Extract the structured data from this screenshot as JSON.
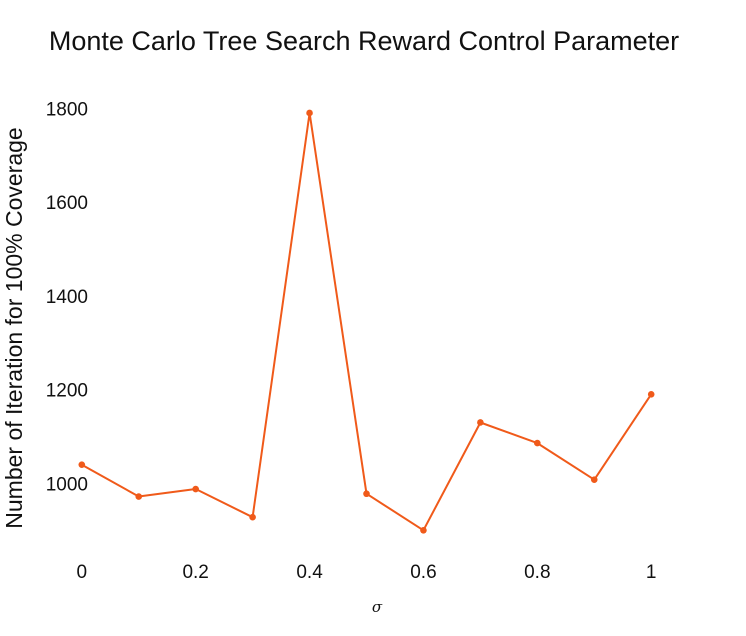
{
  "chart_data": {
    "type": "line",
    "title": "Monte Carlo Tree Search Reward Control Parameter",
    "xlabel": "σ",
    "ylabel": "Number of Iteration for 100% Coverage",
    "x": [
      0,
      0.1,
      0.2,
      0.3,
      0.4,
      0.5,
      0.6,
      0.7,
      0.8,
      0.9,
      1
    ],
    "series": [
      {
        "values": [
          1040,
          972,
          988,
          928,
          1790,
          978,
          900,
          1130,
          1086,
          1008,
          1190
        ],
        "color": "#f05a1a"
      }
    ],
    "xticks": [
      0,
      0.2,
      0.4,
      0.6,
      0.8,
      1
    ],
    "xtick_labels": [
      "0",
      "0.2",
      "0.4",
      "0.6",
      "0.8",
      "1"
    ],
    "yticks": [
      1000,
      1200,
      1400,
      1600,
      1800
    ],
    "ytick_labels": [
      "1000",
      "1200",
      "1400",
      "1600",
      "1800"
    ],
    "xlim": [
      -0.0646,
      1.105
    ],
    "ylim": [
      858,
      1839
    ],
    "grid": false,
    "legend": "none"
  }
}
